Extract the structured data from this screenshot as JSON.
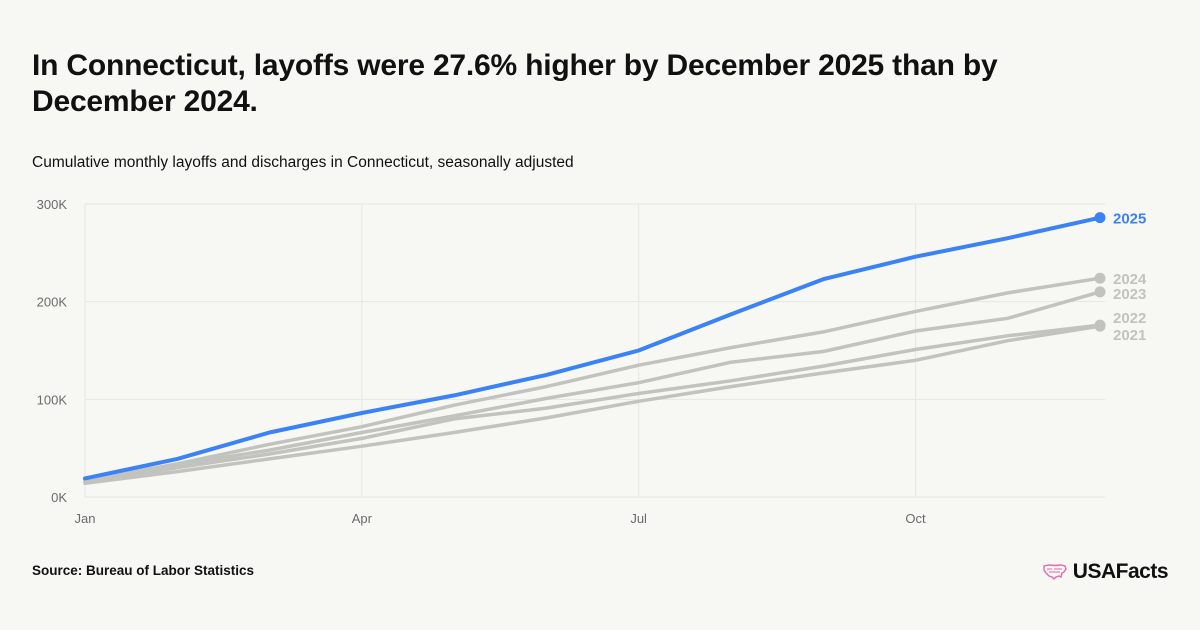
{
  "header": {
    "title": "In Connecticut, layoffs were 27.6% higher by December 2025 than by December 2024.",
    "subtitle": "Cumulative monthly layoffs and discharges in Connecticut, seasonally adjusted"
  },
  "footer": {
    "source": "Source: Bureau of Labor Statistics",
    "brand": "USAFacts"
  },
  "colors": {
    "highlight": "#3b82f6",
    "muted": "#c2c2bf",
    "grid": "#e6e6e2",
    "tick_text": "#6b6b6b",
    "brand_icon": "#e26aa8"
  },
  "chart_data": {
    "type": "line",
    "title": "",
    "xlabel": "",
    "ylabel": "",
    "x": [
      "Jan",
      "Feb",
      "Mar",
      "Apr",
      "May",
      "Jun",
      "Jul",
      "Aug",
      "Sep",
      "Oct",
      "Nov",
      "Dec"
    ],
    "x_ticks": [
      "Jan",
      "Apr",
      "Jul",
      "Oct"
    ],
    "y_ticks": [
      "0K",
      "100K",
      "200K",
      "300K"
    ],
    "ylim": [
      0,
      300000
    ],
    "grid": true,
    "legend": "direct labels at line ends (right)",
    "series": [
      {
        "name": "2021",
        "color": "#c2c2bf",
        "values": [
          14000,
          26000,
          39000,
          52000,
          66000,
          81000,
          98000,
          113000,
          127000,
          140000,
          160000,
          175000
        ]
      },
      {
        "name": "2022",
        "color": "#c2c2bf",
        "values": [
          15000,
          30000,
          44000,
          60000,
          80000,
          91000,
          106000,
          119000,
          134000,
          151000,
          165000,
          176000
        ]
      },
      {
        "name": "2023",
        "color": "#c2c2bf",
        "values": [
          16000,
          33000,
          48000,
          66000,
          83000,
          101000,
          117000,
          138000,
          149000,
          170000,
          183000,
          210000
        ]
      },
      {
        "name": "2024",
        "color": "#c2c2bf",
        "values": [
          17000,
          34000,
          54000,
          72000,
          94000,
          113000,
          135000,
          153000,
          169000,
          190000,
          209000,
          224000
        ]
      },
      {
        "name": "2025",
        "color": "#3b82f6",
        "values": [
          19000,
          39000,
          66000,
          86000,
          104000,
          125000,
          150000,
          187000,
          223000,
          246000,
          265000,
          286000
        ]
      }
    ]
  }
}
